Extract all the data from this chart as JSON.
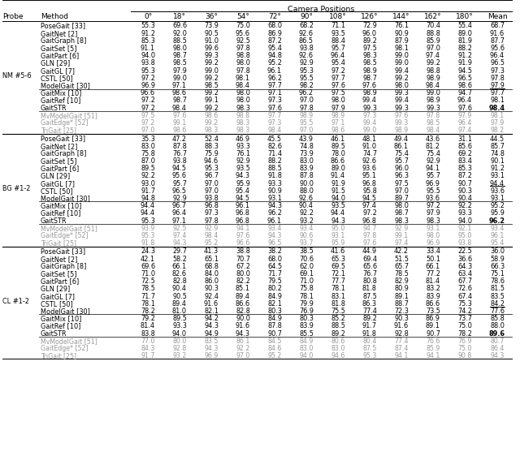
{
  "title": "Camera Positions",
  "col_headers": [
    "0°",
    "18°",
    "36°",
    "54°",
    "72°",
    "90°",
    "108°",
    "126°",
    "144°",
    "162°",
    "180°",
    "Mean"
  ],
  "sections": [
    {
      "probe": "NM #5-6",
      "rows_main": [
        [
          "PoseGait [33]",
          55.3,
          69.6,
          73.9,
          75.0,
          68.0,
          68.2,
          71.1,
          72.9,
          76.1,
          70.4,
          55.4,
          68.7
        ],
        [
          "GaitNet [2]",
          91.2,
          92.0,
          90.5,
          95.6,
          86.9,
          92.6,
          93.5,
          96.0,
          90.9,
          88.8,
          89.0,
          91.6
        ],
        [
          "GaitGraph [8]",
          85.3,
          88.5,
          91.0,
          92.5,
          87.2,
          86.5,
          88.4,
          89.2,
          87.9,
          85.9,
          81.9,
          87.7
        ],
        [
          "GaitSet [5]",
          91.1,
          98.0,
          99.6,
          97.8,
          95.4,
          93.8,
          95.7,
          97.5,
          98.1,
          97.0,
          88.2,
          95.6
        ],
        [
          "GaitPart [6]",
          94.0,
          98.7,
          99.3,
          98.8,
          94.8,
          92.6,
          96.4,
          98.3,
          99.0,
          97.4,
          91.2,
          96.4
        ],
        [
          "GLN [29]",
          93.8,
          98.5,
          99.2,
          98.0,
          95.2,
          92.9,
          95.4,
          98.5,
          99.0,
          99.2,
          91.9,
          96.5
        ],
        [
          "GaitGL [7]",
          95.3,
          97.9,
          99.0,
          97.8,
          96.1,
          95.3,
          97.2,
          98.9,
          99.4,
          98.8,
          94.5,
          97.3
        ],
        [
          "CSTL [50]",
          97.2,
          99.0,
          99.2,
          98.1,
          96.2,
          95.5,
          97.7,
          98.7,
          99.2,
          98.9,
          96.5,
          97.8
        ],
        [
          "ModelGait [30]",
          96.9,
          97.1,
          98.5,
          98.4,
          97.7,
          98.2,
          97.6,
          97.6,
          98.0,
          98.4,
          98.6,
          97.9
        ]
      ],
      "rows_ours": [
        [
          "GaitMix [10]",
          96.6,
          98.6,
          99.2,
          98.0,
          97.1,
          96.2,
          97.5,
          98.9,
          99.3,
          99.0,
          94.7,
          97.7
        ],
        [
          "GaitRef [10]",
          97.2,
          98.7,
          99.1,
          98.0,
          97.3,
          97.0,
          98.0,
          99.4,
          99.4,
          98.9,
          96.4,
          98.1
        ],
        [
          "GaitSTR",
          97.2,
          98.4,
          99.2,
          98.3,
          97.6,
          97.8,
          97.9,
          99.3,
          99.3,
          99.3,
          97.6,
          98.4
        ]
      ],
      "rows_gray": [
        [
          "MvModelGait [51]",
          97.5,
          97.6,
          98.6,
          98.8,
          97.7,
          98.9,
          98.9,
          97.3,
          97.6,
          97.8,
          97.9,
          98.1
        ],
        [
          "GaitEdge* [52]",
          97.2,
          99.1,
          99.2,
          98.3,
          97.3,
          95.5,
          97.1,
          99.4,
          99.3,
          98.5,
          96.4,
          97.9
        ],
        [
          "TriGait [25]",
          97.0,
          98.6,
          98.3,
          98.3,
          98.4,
          97.0,
          98.6,
          99.0,
          98.9,
          98.4,
          97.4,
          98.2
        ]
      ],
      "underline_row": "ModelGait [30]",
      "bold_row": "GaitSTR"
    },
    {
      "probe": "BG #1-2",
      "rows_main": [
        [
          "PoseGait [33]",
          35.3,
          47.2,
          52.4,
          46.9,
          45.5,
          43.9,
          46.1,
          48.1,
          49.4,
          43.6,
          31.1,
          44.5
        ],
        [
          "GaitNet [2]",
          83.0,
          87.8,
          88.3,
          93.3,
          82.6,
          74.8,
          89.5,
          91.0,
          86.1,
          81.2,
          85.6,
          85.7
        ],
        [
          "GaitGraph [8]",
          75.8,
          76.7,
          75.9,
          76.1,
          71.4,
          73.9,
          78.0,
          74.7,
          75.4,
          75.4,
          69.2,
          74.8
        ],
        [
          "GaitSet [5]",
          87.0,
          93.8,
          94.6,
          92.9,
          88.2,
          83.0,
          86.6,
          92.6,
          95.7,
          92.9,
          83.4,
          90.1
        ],
        [
          "GaitPart [6]",
          89.5,
          94.5,
          95.3,
          93.5,
          88.5,
          83.9,
          89.0,
          93.6,
          96.0,
          94.1,
          85.3,
          91.2
        ],
        [
          "GLN [29]",
          92.2,
          95.6,
          96.7,
          94.3,
          91.8,
          87.8,
          91.4,
          95.1,
          96.3,
          95.7,
          87.2,
          93.1
        ],
        [
          "GaitGL [7]",
          93.0,
          95.7,
          97.0,
          95.9,
          93.3,
          90.0,
          91.9,
          96.8,
          97.5,
          96.9,
          90.7,
          94.4
        ],
        [
          "CSTL [50]",
          91.7,
          96.5,
          97.0,
          95.4,
          90.9,
          88.0,
          91.5,
          95.8,
          97.0,
          95.5,
          90.3,
          93.6
        ],
        [
          "ModelGait [30]",
          94.8,
          92.9,
          93.8,
          94.5,
          93.1,
          92.6,
          94.0,
          94.5,
          89.7,
          93.6,
          90.4,
          93.1
        ]
      ],
      "rows_ours": [
        [
          "GaitMix [10]",
          94.4,
          96.7,
          96.8,
          96.1,
          94.3,
          90.4,
          93.5,
          97.4,
          98.0,
          97.2,
          92.2,
          95.2
        ],
        [
          "GaitRef [10]",
          94.4,
          96.4,
          97.3,
          96.8,
          96.2,
          92.2,
          94.4,
          97.2,
          98.7,
          97.9,
          93.3,
          95.9
        ],
        [
          "GaitSTR",
          95.3,
          97.1,
          97.8,
          96.8,
          96.1,
          93.2,
          94.3,
          96.8,
          98.3,
          98.3,
          94.0,
          96.2
        ]
      ],
      "rows_gray": [
        [
          "MvModelGait [51]",
          93.9,
          92.5,
          92.9,
          94.1,
          93.4,
          93.4,
          95.0,
          94.7,
          92.9,
          93.1,
          92.1,
          93.4
        ],
        [
          "GaitEdge* [52]",
          95.3,
          97.4,
          98.4,
          97.6,
          94.3,
          90.6,
          93.1,
          97.8,
          99.1,
          98.0,
          95.0,
          96.1
        ],
        [
          "TriGait [25]",
          91.8,
          94.3,
          95.2,
          96.6,
          96.5,
          93.7,
          95.9,
          97.6,
          97.4,
          96.9,
          93.8,
          95.4
        ]
      ],
      "underline_row": "GaitGL [7]",
      "bold_row": "GaitSTR"
    },
    {
      "probe": "CL #1-2",
      "rows_main": [
        [
          "PoseGait [33]",
          24.3,
          29.7,
          41.3,
          38.8,
          38.2,
          38.5,
          41.6,
          44.9,
          42.2,
          33.4,
          22.5,
          36.0
        ],
        [
          "GaitNet [2]",
          42.1,
          58.2,
          65.1,
          70.7,
          68.0,
          70.6,
          65.3,
          69.4,
          51.5,
          50.1,
          36.6,
          58.9
        ],
        [
          "GaitGraph [8]",
          69.6,
          66.1,
          68.8,
          67.2,
          64.5,
          62.0,
          69.5,
          65.6,
          65.7,
          66.1,
          64.3,
          66.3
        ],
        [
          "GaitSet [5]",
          71.0,
          82.6,
          84.0,
          80.0,
          71.7,
          69.1,
          72.1,
          76.7,
          78.5,
          77.2,
          63.4,
          75.1
        ],
        [
          "GaitPart [6]",
          72.5,
          82.8,
          86.0,
          82.2,
          79.5,
          71.0,
          77.7,
          80.8,
          82.9,
          81.4,
          67.7,
          78.6
        ],
        [
          "GLN [29]",
          78.5,
          90.4,
          90.3,
          85.1,
          80.2,
          75.8,
          78.1,
          81.8,
          80.9,
          83.2,
          72.6,
          81.5
        ],
        [
          "GaitGL [7]",
          71.7,
          90.5,
          92.4,
          89.4,
          84.9,
          78.1,
          83.1,
          87.5,
          89.1,
          83.9,
          67.4,
          83.5
        ],
        [
          "CSTL [50]",
          78.1,
          89.4,
          91.6,
          86.6,
          82.1,
          79.9,
          81.8,
          86.3,
          88.7,
          86.6,
          75.3,
          84.2
        ],
        [
          "ModelGait [30]",
          78.2,
          81.0,
          82.1,
          82.8,
          80.3,
          76.9,
          75.5,
          77.4,
          72.3,
          73.5,
          74.2,
          77.6
        ]
      ],
      "rows_ours": [
        [
          "GaitMix [10]",
          79.2,
          89.5,
          94.2,
          90.0,
          84.9,
          80.3,
          85.2,
          89.2,
          90.3,
          86.9,
          73.7,
          85.8
        ],
        [
          "GaitRef [10]",
          81.4,
          93.3,
          94.3,
          91.6,
          87.8,
          83.9,
          88.5,
          91.7,
          91.6,
          89.1,
          75.0,
          88.0
        ],
        [
          "GaitSTR",
          83.8,
          94.0,
          94.9,
          94.3,
          90.7,
          85.5,
          89.2,
          91.8,
          92.8,
          90.7,
          78.2,
          89.6
        ]
      ],
      "rows_gray": [
        [
          "MvModelGait [51]",
          77.0,
          80.0,
          83.5,
          86.1,
          84.5,
          84.9,
          80.6,
          80.4,
          77.4,
          76.6,
          76.9,
          80.7
        ],
        [
          "GaitEdge* [52]",
          84.3,
          92.8,
          94.3,
          92.2,
          84.6,
          83.0,
          83.0,
          87.5,
          87.4,
          85.9,
          75.0,
          86.4
        ],
        [
          "TriGait [25]",
          91.7,
          93.2,
          96.9,
          97.0,
          95.2,
          94.0,
          94.6,
          95.3,
          94.1,
          94.1,
          90.8,
          94.3
        ]
      ],
      "underline_row": "CSTL [50]",
      "bold_row": "GaitSTR"
    }
  ]
}
